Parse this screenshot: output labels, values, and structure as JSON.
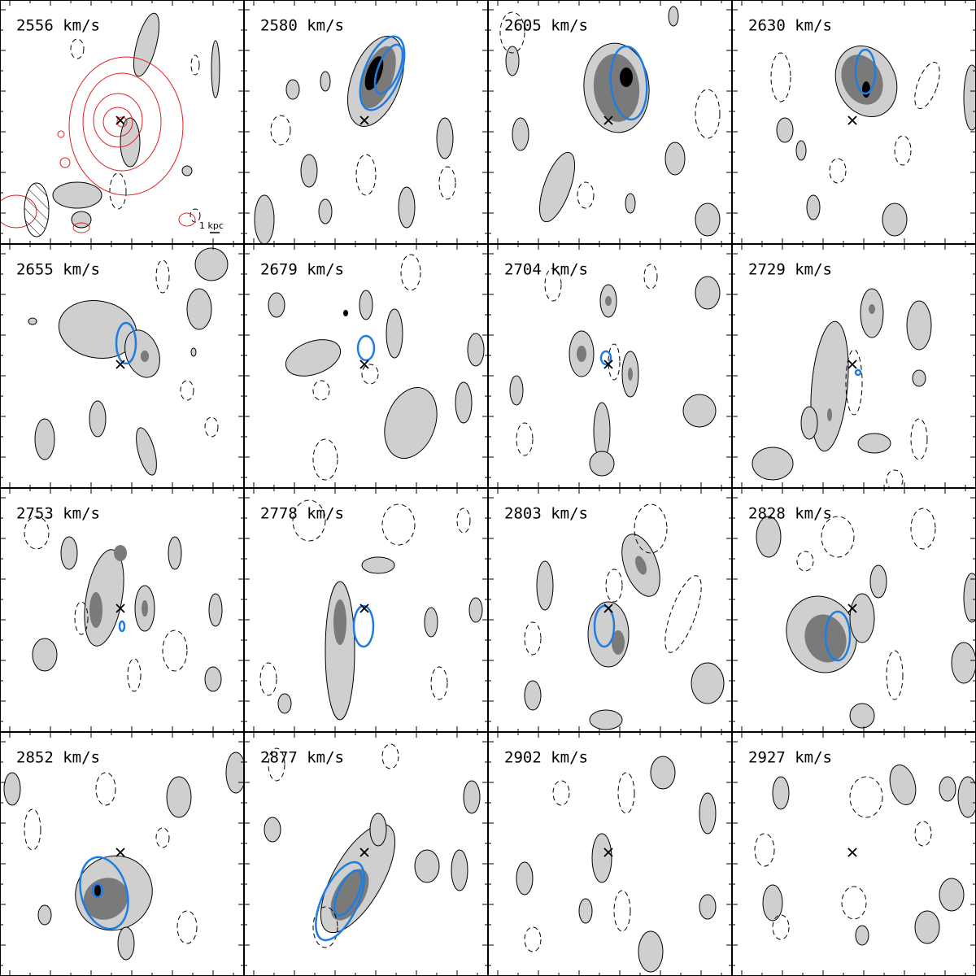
{
  "panels": [
    {
      "label": "2556 km/s"
    },
    {
      "label": "2580 km/s"
    },
    {
      "label": "2605 km/s"
    },
    {
      "label": "2630 km/s"
    },
    {
      "label": "2655 km/s"
    },
    {
      "label": "2679 km/s"
    },
    {
      "label": "2704 km/s"
    },
    {
      "label": "2729 km/s"
    },
    {
      "label": "2753 km/s"
    },
    {
      "label": "2778 km/s"
    },
    {
      "label": "2803 km/s"
    },
    {
      "label": "2828 km/s"
    },
    {
      "label": "2852 km/s"
    },
    {
      "label": "2877 km/s"
    },
    {
      "label": "2902 km/s"
    },
    {
      "label": "2927 km/s"
    }
  ],
  "scale_bar": {
    "label": "1 kpc"
  }
}
